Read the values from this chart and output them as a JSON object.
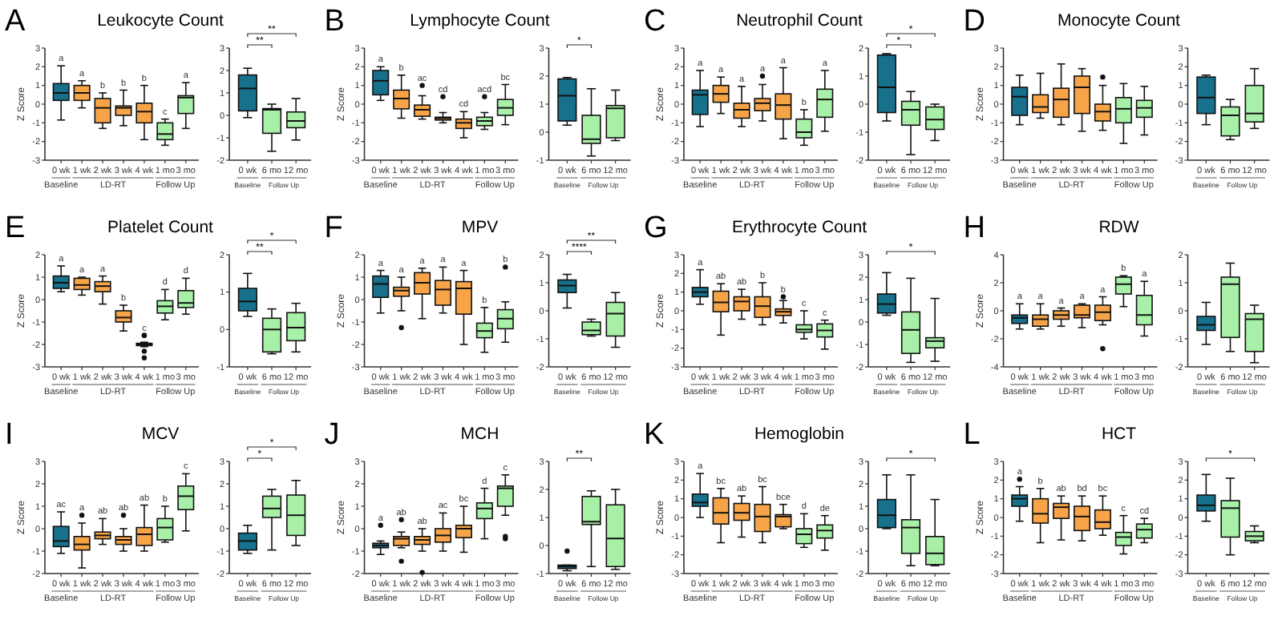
{
  "chart_data": [
    {
      "type": "box",
      "title": "Leukocyte Count",
      "subtitle": "A",
      "ylabel": "Z Score",
      "categories": [
        "0 wk",
        "1 wk",
        "2 wk",
        "3 wk",
        "4 wk",
        "1 mo",
        "3 mo"
      ],
      "colors": [
        "#17708c",
        "#f7a448",
        "#f7a448",
        "#f7a448",
        "#f7a448",
        "#a8f0a8",
        "#a8f0a8"
      ],
      "ylim": [
        -3,
        3
      ],
      "yticks": [
        -3,
        -2,
        -1,
        0,
        1,
        2,
        3
      ],
      "value_labels": [
        "a",
        "a",
        "b",
        "b",
        "b",
        "c",
        "a"
      ],
      "annotations": [
        "Baseline",
        "LD-RT",
        "Follow Up"
      ],
      "boxes": [
        {
          "low": -0.85,
          "q1": 0.2,
          "median": 0.6,
          "q3": 1.1,
          "high": 2.05
        },
        {
          "low": -0.2,
          "q1": 0.2,
          "median": 0.6,
          "q3": 1.0,
          "high": 1.25
        },
        {
          "low": -1.3,
          "q1": -1.0,
          "median": -0.2,
          "q3": 0.3,
          "high": 0.6
        },
        {
          "low": -1.15,
          "q1": -0.6,
          "median": -0.2,
          "q3": -0.1,
          "high": 0.75
        },
        {
          "low": -1.9,
          "q1": -1.0,
          "median": -0.4,
          "q3": 0.05,
          "high": 1.0
        },
        {
          "low": -2.2,
          "q1": -1.9,
          "median": -1.6,
          "q3": -1.0,
          "high": -0.8
        },
        {
          "low": -1.3,
          "q1": -0.5,
          "median": 0.35,
          "q3": 0.45,
          "high": 1.15
        }
      ]
    },
    {
      "type": "box",
      "categories": [
        "0 wk",
        "6 mo",
        "12 mo"
      ],
      "colors": [
        "#17708c",
        "#a8f0a8",
        "#a8f0a8"
      ],
      "ylim": [
        -2,
        3
      ],
      "yticks": [
        -2,
        -1,
        0,
        1,
        2,
        3
      ],
      "annotations": [
        "Baseline",
        "Follow Up",
        "**",
        "**"
      ],
      "boxes": [
        {
          "low": -0.1,
          "q1": 0.2,
          "median": 1.2,
          "q3": 1.8,
          "high": 2.1
        },
        {
          "low": -1.6,
          "q1": -0.8,
          "median": 0.25,
          "q3": 0.3,
          "high": 0.5
        },
        {
          "low": -1.1,
          "q1": -0.55,
          "median": -0.25,
          "q3": 0.15,
          "high": 0.75
        }
      ]
    },
    {
      "type": "box",
      "title": "Lymphocyte Count",
      "subtitle": "B",
      "ylabel": "Z Score",
      "categories": [
        "0 wk",
        "1 wk",
        "2 wk",
        "3 wk",
        "4 wk",
        "1 mo",
        "3 mo"
      ],
      "colors": [
        "#17708c",
        "#f7a448",
        "#f7a448",
        "#f7a448",
        "#f7a448",
        "#a8f0a8",
        "#a8f0a8"
      ],
      "ylim": [
        -3,
        3
      ],
      "yticks": [
        -3,
        -2,
        -1,
        0,
        1,
        2,
        3
      ],
      "value_labels": [
        "a",
        "b",
        "ac",
        "cd",
        "cd",
        "acd",
        "bc"
      ],
      "annotations": [
        "Baseline",
        "LD-RT",
        "Follow Up"
      ],
      "boxes": [
        {
          "low": 0.2,
          "q1": 0.5,
          "median": 1.25,
          "q3": 1.8,
          "high": 2.0
        },
        {
          "low": -0.75,
          "q1": -0.25,
          "median": 0.3,
          "q3": 0.75,
          "high": 1.55
        },
        {
          "low": -0.8,
          "q1": -0.65,
          "median": -0.3,
          "q3": -0.05,
          "high": 0.45,
          "outliers": [
            1.0
          ]
        },
        {
          "low": -1.0,
          "q1": -0.85,
          "median": -0.75,
          "q3": -0.7,
          "high": -0.45,
          "outliers": [
            0.4
          ]
        },
        {
          "low": -1.8,
          "q1": -1.3,
          "median": -1.0,
          "q3": -0.8,
          "high": -0.4
        },
        {
          "low": -1.35,
          "q1": -1.15,
          "median": -0.9,
          "q3": -0.7,
          "high": -0.45,
          "outliers": [
            0.4
          ]
        },
        {
          "low": -1.1,
          "q1": -0.6,
          "median": -0.2,
          "q3": 0.25,
          "high": 1.05
        }
      ]
    },
    {
      "type": "box",
      "categories": [
        "0 wk",
        "6 mo",
        "12 mo"
      ],
      "colors": [
        "#17708c",
        "#a8f0a8",
        "#a8f0a8"
      ],
      "ylim": [
        -1,
        3
      ],
      "yticks": [
        -1,
        0,
        1,
        2,
        3
      ],
      "annotations": [
        "Baseline",
        "Follow Up",
        "*"
      ],
      "boxes": [
        {
          "low": 0.25,
          "q1": 0.4,
          "median": 1.3,
          "q3": 1.9,
          "high": 1.95
        },
        {
          "low": -0.85,
          "q1": -0.4,
          "median": -0.25,
          "q3": 0.6,
          "high": 1.55
        },
        {
          "low": -0.3,
          "q1": -0.2,
          "median": 0.85,
          "q3": 0.95,
          "high": 1.5
        }
      ]
    },
    {
      "type": "box",
      "title": "Neutrophil Count",
      "subtitle": "C",
      "ylabel": "Z Score",
      "categories": [
        "0 wk",
        "1 wk",
        "2 wk",
        "3 wk",
        "4 wk",
        "1 mo",
        "3 mo"
      ],
      "colors": [
        "#17708c",
        "#f7a448",
        "#f7a448",
        "#f7a448",
        "#f7a448",
        "#a8f0a8",
        "#a8f0a8"
      ],
      "ylim": [
        -3,
        3
      ],
      "yticks": [
        -3,
        -2,
        -1,
        0,
        1,
        2,
        3
      ],
      "value_labels": [
        "a",
        "a",
        "a",
        "a",
        "a",
        "b",
        "a"
      ],
      "annotations": [
        "Baseline",
        "LD-RT",
        "Follow Up"
      ],
      "boxes": [
        {
          "low": -1.2,
          "q1": -0.55,
          "median": 0.5,
          "q3": 0.75,
          "high": 1.8
        },
        {
          "low": -0.5,
          "q1": 0.1,
          "median": 0.55,
          "q3": 1.0,
          "high": 1.45
        },
        {
          "low": -1.2,
          "q1": -0.75,
          "median": -0.3,
          "q3": 0.05,
          "high": 0.95
        },
        {
          "low": -0.9,
          "q1": -0.35,
          "median": 0.05,
          "q3": 0.3,
          "high": 1.05,
          "outliers": [
            1.5
          ]
        },
        {
          "low": -1.85,
          "q1": -0.8,
          "median": -0.05,
          "q3": 0.55,
          "high": 1.95
        },
        {
          "low": -2.2,
          "q1": -1.8,
          "median": -1.5,
          "q3": -0.8,
          "high": -0.3
        },
        {
          "low": -1.45,
          "q1": -0.7,
          "median": 0.25,
          "q3": 0.8,
          "high": 1.8
        }
      ]
    },
    {
      "type": "box",
      "categories": [
        "0 wk",
        "6 mo",
        "12 mo"
      ],
      "colors": [
        "#17708c",
        "#a8f0a8",
        "#a8f0a8"
      ],
      "ylim": [
        -2,
        2
      ],
      "yticks": [
        -2,
        -1,
        0,
        1,
        2
      ],
      "annotations": [
        "Baseline",
        "Follow Up",
        "*",
        "*"
      ],
      "boxes": [
        {
          "low": -0.6,
          "q1": -0.3,
          "median": 0.6,
          "q3": 1.75,
          "high": 1.8
        },
        {
          "low": -1.8,
          "q1": -0.75,
          "median": -0.2,
          "q3": 0.1,
          "high": 0.45
        },
        {
          "low": -1.3,
          "q1": -0.9,
          "median": -0.55,
          "q3": -0.1,
          "high": 0.0
        }
      ]
    },
    {
      "type": "box",
      "title": "Monocyte Count",
      "subtitle": "D",
      "ylabel": "Z Score",
      "categories": [
        "0 wk",
        "1 wk",
        "2 wk",
        "3 wk",
        "4 wk",
        "1 mo",
        "3 mo"
      ],
      "colors": [
        "#17708c",
        "#f7a448",
        "#f7a448",
        "#f7a448",
        "#f7a448",
        "#a8f0a8",
        "#a8f0a8"
      ],
      "ylim": [
        -3,
        3
      ],
      "yticks": [
        -3,
        -2,
        -1,
        0,
        1,
        2,
        3
      ],
      "annotations": [
        "Baseline",
        "LD-RT",
        "Follow Up"
      ],
      "boxes": [
        {
          "low": -1.1,
          "q1": -0.6,
          "median": 0.4,
          "q3": 0.9,
          "high": 1.55
        },
        {
          "low": -0.75,
          "q1": -0.45,
          "median": -0.15,
          "q3": 0.5,
          "high": 1.65
        },
        {
          "low": -1.1,
          "q1": -0.7,
          "median": 0.25,
          "q3": 0.85,
          "high": 2.15
        },
        {
          "low": -1.45,
          "q1": -0.5,
          "median": 0.9,
          "q3": 1.5,
          "high": 1.9
        },
        {
          "low": -1.4,
          "q1": -0.9,
          "median": -0.4,
          "q3": 0.0,
          "high": 1.0,
          "outliers": [
            1.45
          ]
        },
        {
          "low": -2.1,
          "q1": -1.0,
          "median": -0.25,
          "q3": 0.35,
          "high": 1.1
        },
        {
          "low": -1.65,
          "q1": -0.7,
          "median": -0.2,
          "q3": 0.2,
          "high": 0.95
        }
      ]
    },
    {
      "type": "box",
      "categories": [
        "0 wk",
        "6 mo",
        "12 mo"
      ],
      "colors": [
        "#17708c",
        "#a8f0a8",
        "#a8f0a8"
      ],
      "ylim": [
        -3,
        3
      ],
      "yticks": [
        -3,
        -2,
        -1,
        0,
        1,
        2,
        3
      ],
      "annotations": [
        "Baseline",
        "Follow Up"
      ],
      "boxes": [
        {
          "low": -1.1,
          "q1": -0.5,
          "median": 0.35,
          "q3": 1.45,
          "high": 1.55
        },
        {
          "low": -1.9,
          "q1": -1.7,
          "median": -0.6,
          "q3": -0.15,
          "high": 0.25
        },
        {
          "low": -1.3,
          "q1": -0.95,
          "median": -0.5,
          "q3": 1.0,
          "high": 1.9
        }
      ]
    },
    {
      "type": "box",
      "title": "Platelet Count",
      "subtitle": "E",
      "ylabel": "Z Score",
      "categories": [
        "0 wk",
        "1 wk",
        "2 wk",
        "3 wk",
        "4 wk",
        "1 mo",
        "3 mo"
      ],
      "colors": [
        "#17708c",
        "#f7a448",
        "#f7a448",
        "#f7a448",
        "#f7a448",
        "#a8f0a8",
        "#a8f0a8"
      ],
      "ylim": [
        -3,
        2
      ],
      "yticks": [
        -3,
        -2,
        -1,
        0,
        1,
        2
      ],
      "value_labels": [
        "a",
        "a",
        "a",
        "b",
        "c",
        "d",
        "d"
      ],
      "annotations": [
        "Baseline",
        "LD-RT",
        "Follow Up"
      ],
      "boxes": [
        {
          "low": 0.35,
          "q1": 0.5,
          "median": 0.75,
          "q3": 1.05,
          "high": 1.5
        },
        {
          "low": 0.2,
          "q1": 0.45,
          "median": 0.65,
          "q3": 0.95,
          "high": 1.0
        },
        {
          "low": -0.2,
          "q1": 0.35,
          "median": 0.6,
          "q3": 0.8,
          "high": 1.05
        },
        {
          "low": -1.4,
          "q1": -1.0,
          "median": -0.8,
          "q3": -0.5,
          "high": -0.25
        },
        {
          "low": -2.1,
          "q1": -2.05,
          "median": -2.0,
          "q3": -1.95,
          "high": -1.9,
          "outliers": [
            -1.6,
            -1.6,
            -2.3,
            -2.6
          ]
        },
        {
          "low": -0.9,
          "q1": -0.6,
          "median": -0.3,
          "q3": -0.05,
          "high": 0.45
        },
        {
          "low": -0.65,
          "q1": -0.35,
          "median": -0.15,
          "q3": 0.4,
          "high": 0.95
        }
      ]
    },
    {
      "type": "box",
      "categories": [
        "0 wk",
        "6 mo",
        "12 mo"
      ],
      "colors": [
        "#17708c",
        "#a8f0a8",
        "#a8f0a8"
      ],
      "ylim": [
        -1,
        2
      ],
      "yticks": [
        -1,
        0,
        1,
        2
      ],
      "annotations": [
        "Baseline",
        "Follow Up",
        "**",
        "*"
      ],
      "boxes": [
        {
          "low": 0.35,
          "q1": 0.5,
          "median": 0.75,
          "q3": 1.1,
          "high": 1.5
        },
        {
          "low": -0.65,
          "q1": -0.6,
          "median": 0.0,
          "q3": 0.3,
          "high": 0.55
        },
        {
          "low": -0.6,
          "q1": -0.3,
          "median": 0.05,
          "q3": 0.45,
          "high": 0.7
        }
      ]
    },
    {
      "type": "box",
      "title": "MPV",
      "subtitle": "F",
      "ylabel": "Z Score",
      "categories": [
        "0 wk",
        "1 wk",
        "2 wk",
        "3 wk",
        "4 wk",
        "1 mo",
        "3 mo"
      ],
      "colors": [
        "#17708c",
        "#f7a448",
        "#f7a448",
        "#f7a448",
        "#f7a448",
        "#a8f0a8",
        "#a8f0a8"
      ],
      "ylim": [
        -3,
        2
      ],
      "yticks": [
        -3,
        -2,
        -1,
        0,
        1,
        2
      ],
      "value_labels": [
        "a",
        "a",
        "a",
        "a",
        "a",
        "b",
        "b"
      ],
      "annotations": [
        "Baseline",
        "LD-RT",
        "Follow Up"
      ],
      "boxes": [
        {
          "low": -0.6,
          "q1": 0.1,
          "median": 0.7,
          "q3": 1.05,
          "high": 1.3
        },
        {
          "low": -0.5,
          "q1": 0.15,
          "median": 0.4,
          "q3": 0.55,
          "high": 1.0,
          "outliers": [
            -1.25
          ]
        },
        {
          "low": -0.85,
          "q1": 0.25,
          "median": 0.75,
          "q3": 1.2,
          "high": 1.4
        },
        {
          "low": -0.6,
          "q1": -0.25,
          "median": 0.45,
          "q3": 0.85,
          "high": 1.45
        },
        {
          "low": -2.0,
          "q1": -0.65,
          "median": 0.5,
          "q3": 0.8,
          "high": 1.3
        },
        {
          "low": -2.35,
          "q1": -1.7,
          "median": -1.4,
          "q3": -1.05,
          "high": -0.35
        },
        {
          "low": -1.9,
          "q1": -1.3,
          "median": -0.85,
          "q3": -0.45,
          "high": -0.1,
          "outliers": [
            1.45
          ]
        }
      ]
    },
    {
      "type": "box",
      "categories": [
        "0 wk",
        "6 mo",
        "12 mo"
      ],
      "colors": [
        "#17708c",
        "#a8f0a8",
        "#a8f0a8"
      ],
      "ylim": [
        -2,
        2
      ],
      "yticks": [
        -2,
        -1,
        0,
        1,
        2
      ],
      "annotations": [
        "Baseline",
        "Follow Up",
        "****",
        "**"
      ],
      "boxes": [
        {
          "low": 0.1,
          "q1": 0.65,
          "median": 0.9,
          "q3": 1.1,
          "high": 1.3
        },
        {
          "low": -0.9,
          "q1": -0.85,
          "median": -0.7,
          "q3": -0.4,
          "high": -0.3
        },
        {
          "low": -1.3,
          "q1": -0.9,
          "median": -0.1,
          "q3": 0.3,
          "high": 0.65
        }
      ]
    },
    {
      "type": "box",
      "title": "Erythrocyte Count",
      "subtitle": "G",
      "ylabel": "Z Score",
      "categories": [
        "0 wk",
        "1 wk",
        "2 wk",
        "3 wk",
        "4 wk",
        "1 mo",
        "3 mo"
      ],
      "colors": [
        "#17708c",
        "#f7a448",
        "#f7a448",
        "#f7a448",
        "#f7a448",
        "#a8f0a8",
        "#a8f0a8"
      ],
      "ylim": [
        -3,
        3
      ],
      "yticks": [
        -3,
        -2,
        -1,
        0,
        1,
        2,
        3
      ],
      "value_labels": [
        "a",
        "ab",
        "ab",
        "b",
        "b",
        "c",
        "c"
      ],
      "annotations": [
        "Baseline",
        "LD-RT",
        "Follow Up"
      ],
      "boxes": [
        {
          "low": 0.35,
          "q1": 0.75,
          "median": 1.0,
          "q3": 1.25,
          "high": 2.2
        },
        {
          "low": -1.3,
          "q1": -0.05,
          "median": 0.45,
          "q3": 1.05,
          "high": 1.45
        },
        {
          "low": -0.45,
          "q1": 0.0,
          "median": 0.5,
          "q3": 0.75,
          "high": 1.15
        },
        {
          "low": -0.75,
          "q1": -0.35,
          "median": 0.25,
          "q3": 0.75,
          "high": 1.5
        },
        {
          "low": -0.65,
          "q1": -0.25,
          "median": -0.05,
          "q3": 0.1,
          "high": 0.55,
          "outliers": [
            0.75
          ]
        },
        {
          "low": -1.5,
          "q1": -1.15,
          "median": -1.0,
          "q3": -0.75,
          "high": 0.0
        },
        {
          "low": -2.05,
          "q1": -1.4,
          "median": -1.05,
          "q3": -0.7,
          "high": -0.5
        }
      ]
    },
    {
      "type": "box",
      "categories": [
        "0 wk",
        "6 mo",
        "12 mo"
      ],
      "colors": [
        "#17708c",
        "#a8f0a8",
        "#a8f0a8"
      ],
      "ylim": [
        -2,
        3
      ],
      "yticks": [
        -2,
        -1,
        0,
        1,
        2,
        3
      ],
      "annotations": [
        "Baseline",
        "Follow Up",
        "*"
      ],
      "boxes": [
        {
          "low": 0.3,
          "q1": 0.4,
          "median": 0.8,
          "q3": 1.25,
          "high": 2.2
        },
        {
          "low": -1.8,
          "q1": -1.4,
          "median": -0.35,
          "q3": 0.45,
          "high": 1.95
        },
        {
          "low": -1.75,
          "q1": -1.15,
          "median": -0.85,
          "q3": -0.7,
          "high": 1.05
        }
      ]
    },
    {
      "type": "box",
      "title": "RDW",
      "subtitle": "H",
      "ylabel": "Z Score",
      "categories": [
        "0 wk",
        "1 wk",
        "2 wk",
        "3 wk",
        "4 wk",
        "1 mo",
        "3 mo"
      ],
      "colors": [
        "#17708c",
        "#f7a448",
        "#f7a448",
        "#f7a448",
        "#f7a448",
        "#a8f0a8",
        "#a8f0a8"
      ],
      "ylim": [
        -4,
        4
      ],
      "yticks": [
        -4,
        -2,
        0,
        2,
        4
      ],
      "value_labels": [
        "a",
        "a",
        "a",
        "a",
        "a",
        "b",
        "a"
      ],
      "annotations": [
        "Baseline",
        "LD-RT",
        "Follow Up"
      ],
      "boxes": [
        {
          "low": -1.3,
          "q1": -0.9,
          "median": -0.5,
          "q3": -0.3,
          "high": 0.5
        },
        {
          "low": -1.3,
          "q1": -1.1,
          "median": -0.6,
          "q3": -0.3,
          "high": 0.5
        },
        {
          "low": -1.1,
          "q1": -0.6,
          "median": -0.3,
          "q3": 0.0,
          "high": 0.2
        },
        {
          "low": -1.2,
          "q1": -0.5,
          "median": -0.3,
          "q3": 0.4,
          "high": 0.5
        },
        {
          "low": -1.0,
          "q1": -0.7,
          "median": -0.1,
          "q3": 0.4,
          "high": 1.0,
          "outliers": [
            -2.7
          ]
        },
        {
          "low": 0.3,
          "q1": 1.2,
          "median": 1.9,
          "q3": 2.4,
          "high": 2.5
        },
        {
          "low": -1.8,
          "q1": -1.0,
          "median": -0.3,
          "q3": 1.1,
          "high": 2.1
        }
      ]
    },
    {
      "type": "box",
      "categories": [
        "0 wk",
        "6 mo",
        "12 mo"
      ],
      "colors": [
        "#17708c",
        "#a8f0a8",
        "#a8f0a8"
      ],
      "ylim": [
        -2,
        2
      ],
      "yticks": [
        -2,
        -1,
        0,
        1,
        2
      ],
      "annotations": [
        "Baseline",
        "Follow Up"
      ],
      "boxes": [
        {
          "low": -1.2,
          "q1": -0.7,
          "median": -0.5,
          "q3": -0.2,
          "high": 0.3
        },
        {
          "low": -1.45,
          "q1": -0.95,
          "median": 0.95,
          "q3": 1.2,
          "high": 1.7
        },
        {
          "low": -1.85,
          "q1": -1.45,
          "median": -0.3,
          "q3": -0.1,
          "high": 0.2
        }
      ]
    },
    {
      "type": "box",
      "title": "MCV",
      "subtitle": "I",
      "ylabel": "Z Score",
      "categories": [
        "0 wk",
        "1 wk",
        "2 wk",
        "3 wk",
        "4 wk",
        "1 mo",
        "3 mo"
      ],
      "colors": [
        "#17708c",
        "#f7a448",
        "#f7a448",
        "#f7a448",
        "#f7a448",
        "#a8f0a8",
        "#a8f0a8"
      ],
      "ylim": [
        -2,
        3
      ],
      "yticks": [
        -2,
        -1,
        0,
        1,
        2,
        3
      ],
      "value_labels": [
        "ac",
        "a",
        "ab",
        "ab",
        "ab",
        "b",
        "c"
      ],
      "annotations": [
        "Baseline",
        "LD-RT",
        "Follow Up"
      ],
      "boxes": [
        {
          "low": -1.1,
          "q1": -0.8,
          "median": -0.55,
          "q3": 0.1,
          "high": 0.75
        },
        {
          "low": -1.75,
          "q1": -0.95,
          "median": -0.7,
          "q3": -0.35,
          "high": 0.25,
          "outliers": [
            0.6
          ]
        },
        {
          "low": -0.7,
          "q1": -0.45,
          "median": -0.3,
          "q3": -0.15,
          "high": 0.45
        },
        {
          "low": -1.0,
          "q1": -0.7,
          "median": -0.5,
          "q3": -0.35,
          "high": 0.0,
          "outliers": [
            0.6
          ]
        },
        {
          "low": -1.0,
          "q1": -0.75,
          "median": -0.25,
          "q3": 0.05,
          "high": 1.05
        },
        {
          "low": -0.6,
          "q1": -0.5,
          "median": 0.05,
          "q3": 0.45,
          "high": 1.0
        },
        {
          "low": -0.1,
          "q1": 0.85,
          "median": 1.45,
          "q3": 1.9,
          "high": 2.45
        }
      ]
    },
    {
      "type": "box",
      "categories": [
        "0 wk",
        "6 mo",
        "12 mo"
      ],
      "colors": [
        "#17708c",
        "#a8f0a8",
        "#a8f0a8"
      ],
      "ylim": [
        -2,
        3
      ],
      "yticks": [
        -2,
        -1,
        0,
        1,
        2,
        3
      ],
      "annotations": [
        "Baseline",
        "Follow Up",
        "*",
        "*"
      ],
      "boxes": [
        {
          "low": -1.1,
          "q1": -0.95,
          "median": -0.55,
          "q3": -0.2,
          "high": 0.15
        },
        {
          "low": -0.95,
          "q1": 0.5,
          "median": 0.9,
          "q3": 1.45,
          "high": 1.75
        },
        {
          "low": -0.75,
          "q1": -0.3,
          "median": 0.6,
          "q3": 1.5,
          "high": 2.15
        }
      ]
    },
    {
      "type": "box",
      "title": "MCH",
      "subtitle": "J",
      "ylabel": "Z Score",
      "categories": [
        "0 wk",
        "1 wk",
        "2 wk",
        "3 wk",
        "4 wk",
        "1 mo",
        "3 mo"
      ],
      "colors": [
        "#17708c",
        "#f7a448",
        "#f7a448",
        "#f7a448",
        "#f7a448",
        "#a8f0a8",
        "#a8f0a8"
      ],
      "ylim": [
        -2,
        3
      ],
      "yticks": [
        -2,
        -1,
        0,
        1,
        2,
        3
      ],
      "value_labels": [
        "a",
        "ab",
        "ab",
        "ac",
        "bc",
        "d",
        "c"
      ],
      "annotations": [
        "Baseline",
        "LD-RT",
        "Follow Up"
      ],
      "boxes": [
        {
          "low": -1.15,
          "q1": -0.85,
          "median": -0.75,
          "q3": -0.65,
          "high": -0.55,
          "outliers": [
            0.15
          ]
        },
        {
          "low": -0.85,
          "q1": -0.75,
          "median": -0.45,
          "q3": -0.35,
          "high": -0.15,
          "outliers": [
            0.4,
            -1.45
          ]
        },
        {
          "low": -1.0,
          "q1": -0.7,
          "median": -0.5,
          "q3": -0.35,
          "high": 0.0,
          "outliers": [
            -1.95
          ]
        },
        {
          "low": -1.0,
          "q1": -0.6,
          "median": -0.3,
          "q3": 0.0,
          "high": 0.7
        },
        {
          "low": -1.05,
          "q1": -0.4,
          "median": 0.0,
          "q3": 0.15,
          "high": 1.0
        },
        {
          "low": -0.45,
          "q1": 0.45,
          "median": 0.9,
          "q3": 1.15,
          "high": 1.8
        },
        {
          "low": 0.6,
          "q1": 1.0,
          "median": 1.8,
          "q3": 1.9,
          "high": 2.4,
          "outliers": [
            -0.45,
            -0.35
          ]
        }
      ]
    },
    {
      "type": "box",
      "categories": [
        "0 wk",
        "6 mo",
        "12 mo"
      ],
      "colors": [
        "#17708c",
        "#a8f0a8",
        "#a8f0a8"
      ],
      "ylim": [
        -1,
        3
      ],
      "yticks": [
        -1,
        0,
        1,
        2,
        3
      ],
      "annotations": [
        "Baseline",
        "Follow Up",
        "**"
      ],
      "boxes": [
        {
          "low": -0.9,
          "q1": -0.82,
          "median": -0.75,
          "q3": -0.7,
          "high": -0.7,
          "outliers": [
            -0.2
          ]
        },
        {
          "low": -0.75,
          "q1": 0.75,
          "median": 0.85,
          "q3": 1.75,
          "high": 1.95
        },
        {
          "low": -0.85,
          "q1": -0.75,
          "median": 0.25,
          "q3": 1.45,
          "high": 2.0
        }
      ]
    },
    {
      "type": "box",
      "title": "Hemoglobin",
      "subtitle": "K",
      "ylabel": "Z Score",
      "categories": [
        "0 wk",
        "1 wk",
        "2 wk",
        "3 wk",
        "4 wk",
        "1 mo",
        "3 mo"
      ],
      "colors": [
        "#17708c",
        "#f7a448",
        "#f7a448",
        "#f7a448",
        "#f7a448",
        "#a8f0a8",
        "#a8f0a8"
      ],
      "ylim": [
        -3,
        3
      ],
      "yticks": [
        -3,
        -2,
        -1,
        0,
        1,
        2,
        3
      ],
      "value_labels": [
        "a",
        "bc",
        "ab",
        "bc",
        "bce",
        "d",
        "de"
      ],
      "annotations": [
        "Baseline",
        "LD-RT",
        "Follow Up"
      ],
      "boxes": [
        {
          "low": 0.0,
          "q1": 0.6,
          "median": 0.8,
          "q3": 1.25,
          "high": 2.35
        },
        {
          "low": -1.35,
          "q1": -0.35,
          "median": 0.25,
          "q3": 1.05,
          "high": 1.55
        },
        {
          "low": -1.05,
          "q1": -0.15,
          "median": 0.25,
          "q3": 0.75,
          "high": 1.15
        },
        {
          "low": -1.35,
          "q1": -0.75,
          "median": 0.05,
          "q3": 0.7,
          "high": 1.65
        },
        {
          "low": -0.6,
          "q1": -0.5,
          "median": 0.05,
          "q3": 0.15,
          "high": 0.7
        },
        {
          "low": -1.6,
          "q1": -1.4,
          "median": -0.9,
          "q3": -0.6,
          "high": 0.2
        },
        {
          "low": -1.75,
          "q1": -1.1,
          "median": -0.7,
          "q3": -0.4,
          "high": 0.1
        }
      ]
    },
    {
      "type": "box",
      "categories": [
        "0 wk",
        "6 mo",
        "12 mo"
      ],
      "colors": [
        "#17708c",
        "#a8f0a8",
        "#a8f0a8"
      ],
      "ylim": [
        -2,
        3
      ],
      "yticks": [
        -2,
        -1,
        0,
        1,
        2,
        3
      ],
      "annotations": [
        "Baseline",
        "Follow Up",
        "*"
      ],
      "boxes": [
        {
          "low": 0.0,
          "q1": 0.05,
          "median": 0.6,
          "q3": 1.3,
          "high": 2.4
        },
        {
          "low": -1.65,
          "q1": -1.1,
          "median": 0.05,
          "q3": 0.4,
          "high": 2.4
        },
        {
          "low": -1.65,
          "q1": -1.6,
          "median": -1.1,
          "q3": -0.35,
          "high": 1.3
        }
      ]
    },
    {
      "type": "box",
      "title": "HCT",
      "subtitle": "L",
      "ylabel": "Z Score",
      "categories": [
        "0 wk",
        "1 wk",
        "2 wk",
        "3 wk",
        "4 wk",
        "1 mo",
        "3 mo"
      ],
      "colors": [
        "#17708c",
        "#f7a448",
        "#f7a448",
        "#f7a448",
        "#f7a448",
        "#a8f0a8",
        "#a8f0a8"
      ],
      "ylim": [
        -3,
        3
      ],
      "yticks": [
        -3,
        -2,
        -1,
        0,
        1,
        2,
        3
      ],
      "value_labels": [
        "a",
        "b",
        "ab",
        "bd",
        "bc",
        "c",
        "cd"
      ],
      "annotations": [
        "Baseline",
        "LD-RT",
        "Follow Up"
      ],
      "boxes": [
        {
          "low": -0.2,
          "q1": 0.6,
          "median": 1.0,
          "q3": 1.2,
          "high": 1.65,
          "outliers": [
            2.05
          ]
        },
        {
          "low": -1.35,
          "q1": -0.3,
          "median": 0.2,
          "q3": 1.0,
          "high": 1.55
        },
        {
          "low": -1.2,
          "q1": -0.05,
          "median": 0.55,
          "q3": 0.75,
          "high": 1.15
        },
        {
          "low": -1.25,
          "q1": -0.7,
          "median": 0.05,
          "q3": 0.6,
          "high": 1.15
        },
        {
          "low": -0.95,
          "q1": -0.6,
          "median": -0.25,
          "q3": 0.4,
          "high": 1.15
        },
        {
          "low": -1.95,
          "q1": -1.5,
          "median": -1.05,
          "q3": -0.8,
          "high": 0.1
        },
        {
          "low": -1.35,
          "q1": -1.1,
          "median": -0.65,
          "q3": -0.35,
          "high": -0.05
        }
      ]
    },
    {
      "type": "box",
      "categories": [
        "0 wk",
        "6 mo",
        "12 mo"
      ],
      "colors": [
        "#17708c",
        "#a8f0a8",
        "#a8f0a8"
      ],
      "ylim": [
        -3,
        3
      ],
      "yticks": [
        -3,
        -2,
        -1,
        0,
        1,
        2,
        3
      ],
      "annotations": [
        "Baseline",
        "Follow Up",
        "*"
      ],
      "boxes": [
        {
          "low": -0.2,
          "q1": 0.35,
          "median": 0.65,
          "q3": 1.2,
          "high": 2.3
        },
        {
          "low": -2.0,
          "q1": -1.05,
          "median": 0.5,
          "q3": 0.9,
          "high": 2.1
        },
        {
          "low": -1.35,
          "q1": -1.25,
          "median": -1.0,
          "q3": -0.75,
          "high": -0.45
        }
      ]
    }
  ]
}
